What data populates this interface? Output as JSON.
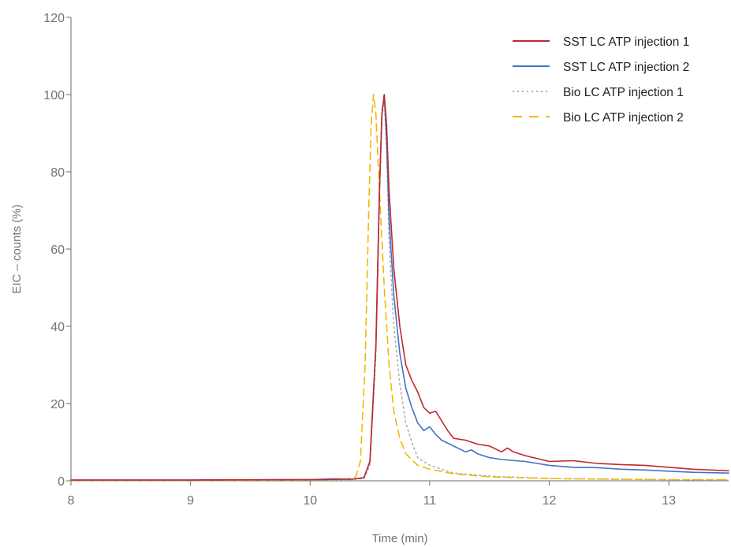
{
  "chart_data": {
    "type": "line",
    "xlabel": "Time (min)",
    "ylabel": "EIC – counts (%)",
    "xlim": [
      8,
      13.5
    ],
    "ylim": [
      0,
      120
    ],
    "x_ticks": [
      "8",
      "9",
      "10",
      "11",
      "12",
      "13"
    ],
    "y_ticks": [
      "0",
      "20",
      "40",
      "60",
      "80",
      "100",
      "120"
    ],
    "grid": false,
    "legend_position": "top-right",
    "series": [
      {
        "name": "SST LC ATP injection 1",
        "color": "#c0282d",
        "dash": "solid",
        "points": [
          [
            8.0,
            0.2
          ],
          [
            9.0,
            0.2
          ],
          [
            10.0,
            0.3
          ],
          [
            10.35,
            0.4
          ],
          [
            10.45,
            0.8
          ],
          [
            10.5,
            5
          ],
          [
            10.55,
            35
          ],
          [
            10.58,
            75
          ],
          [
            10.6,
            95
          ],
          [
            10.62,
            100
          ],
          [
            10.64,
            92
          ],
          [
            10.66,
            75
          ],
          [
            10.7,
            55
          ],
          [
            10.75,
            40
          ],
          [
            10.8,
            30
          ],
          [
            10.85,
            26
          ],
          [
            10.9,
            23
          ],
          [
            10.95,
            19
          ],
          [
            11.0,
            17.5
          ],
          [
            11.05,
            18
          ],
          [
            11.1,
            15.5
          ],
          [
            11.15,
            13
          ],
          [
            11.2,
            11
          ],
          [
            11.3,
            10.5
          ],
          [
            11.4,
            9.5
          ],
          [
            11.5,
            9
          ],
          [
            11.6,
            7.5
          ],
          [
            11.65,
            8.5
          ],
          [
            11.7,
            7.5
          ],
          [
            11.8,
            6.5
          ],
          [
            12.0,
            5
          ],
          [
            12.2,
            5.2
          ],
          [
            12.4,
            4.5
          ],
          [
            12.6,
            4.2
          ],
          [
            12.8,
            4.0
          ],
          [
            13.0,
            3.5
          ],
          [
            13.2,
            3.0
          ],
          [
            13.5,
            2.6
          ]
        ]
      },
      {
        "name": "SST LC ATP injection 2",
        "color": "#4472c4",
        "dash": "solid",
        "points": [
          [
            8.0,
            0.2
          ],
          [
            9.0,
            0.2
          ],
          [
            10.0,
            0.3
          ],
          [
            10.2,
            0.5
          ],
          [
            10.35,
            0.4
          ],
          [
            10.45,
            0.8
          ],
          [
            10.5,
            5
          ],
          [
            10.55,
            35
          ],
          [
            10.58,
            75
          ],
          [
            10.6,
            95
          ],
          [
            10.62,
            100
          ],
          [
            10.64,
            88
          ],
          [
            10.66,
            68
          ],
          [
            10.7,
            48
          ],
          [
            10.75,
            33
          ],
          [
            10.8,
            24
          ],
          [
            10.85,
            19
          ],
          [
            10.9,
            15
          ],
          [
            10.95,
            13
          ],
          [
            11.0,
            14
          ],
          [
            11.05,
            12
          ],
          [
            11.1,
            10.5
          ],
          [
            11.2,
            9
          ],
          [
            11.3,
            7.5
          ],
          [
            11.35,
            8
          ],
          [
            11.4,
            7
          ],
          [
            11.5,
            6
          ],
          [
            11.6,
            5.5
          ],
          [
            11.8,
            5
          ],
          [
            12.0,
            4
          ],
          [
            12.2,
            3.5
          ],
          [
            12.4,
            3.4
          ],
          [
            12.6,
            3.0
          ],
          [
            12.8,
            2.8
          ],
          [
            13.0,
            2.5
          ],
          [
            13.2,
            2.2
          ],
          [
            13.5,
            2.0
          ]
        ]
      },
      {
        "name": "Bio LC ATP injection 1",
        "color": "#b0b0b0",
        "dash": "dotted",
        "points": [
          [
            8.0,
            0.1
          ],
          [
            9.0,
            0.1
          ],
          [
            10.0,
            0.2
          ],
          [
            10.35,
            0.3
          ],
          [
            10.45,
            0.6
          ],
          [
            10.5,
            4
          ],
          [
            10.55,
            33
          ],
          [
            10.58,
            73
          ],
          [
            10.6,
            94
          ],
          [
            10.62,
            99
          ],
          [
            10.64,
            85
          ],
          [
            10.66,
            62
          ],
          [
            10.7,
            40
          ],
          [
            10.75,
            25
          ],
          [
            10.8,
            15
          ],
          [
            10.85,
            10
          ],
          [
            10.9,
            6
          ],
          [
            11.0,
            4
          ],
          [
            11.2,
            2
          ],
          [
            11.5,
            1.2
          ],
          [
            12.0,
            0.6
          ],
          [
            13.0,
            0.3
          ],
          [
            13.5,
            0.2
          ]
        ]
      },
      {
        "name": "Bio LC ATP injection 2",
        "color": "#f2b800",
        "dash": "dashed",
        "points": [
          [
            8.0,
            0.1
          ],
          [
            9.0,
            0.1
          ],
          [
            10.0,
            0.2
          ],
          [
            10.3,
            0.4
          ],
          [
            10.38,
            1
          ],
          [
            10.42,
            5
          ],
          [
            10.46,
            30
          ],
          [
            10.49,
            70
          ],
          [
            10.51,
            92
          ],
          [
            10.53,
            100
          ],
          [
            10.55,
            95
          ],
          [
            10.58,
            75
          ],
          [
            10.62,
            50
          ],
          [
            10.66,
            30
          ],
          [
            10.7,
            18
          ],
          [
            10.75,
            11
          ],
          [
            10.8,
            7
          ],
          [
            10.9,
            4
          ],
          [
            11.0,
            3
          ],
          [
            11.2,
            1.8
          ],
          [
            11.5,
            1
          ],
          [
            12.0,
            0.6
          ],
          [
            12.5,
            0.4
          ],
          [
            13.0,
            0.3
          ],
          [
            13.5,
            0.3
          ]
        ]
      }
    ]
  }
}
